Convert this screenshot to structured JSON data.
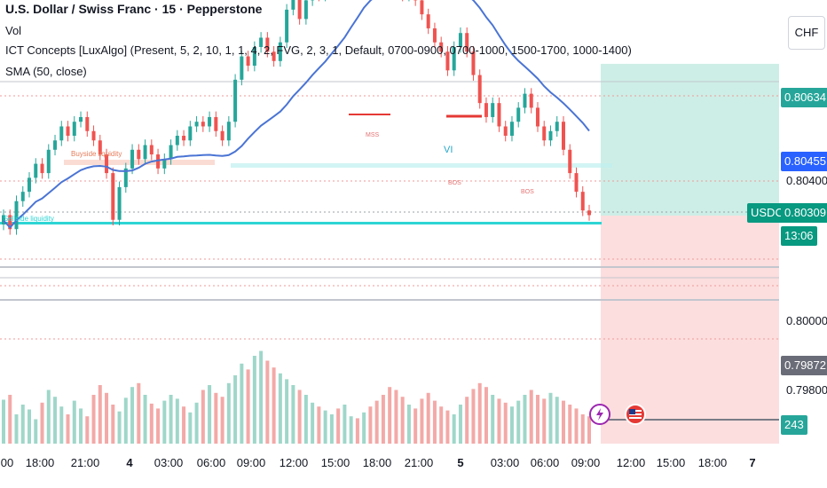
{
  "header": {
    "title": "U.S. Dollar / Swiss Franc · 15 · Pepperstone",
    "currency_button": "CHF"
  },
  "indicators": {
    "vol": "Vol",
    "ict": "ICT Concepts [LuxAlgo] (Present, 5, 2, 10, 1, 1, 4, 2, FVG, 2, 3, 1, Default, 0700-0900, 0700-1000, 1500-1700, 1000-1400)",
    "sma": "SMA (50, close)"
  },
  "price_scale": {
    "tags": {
      "target": "0.80634",
      "blue": "0.80455",
      "symbol": "USDCHF",
      "current": "0.80309",
      "countdown": "13:06",
      "stop": "0.79872",
      "volume": "243"
    },
    "labels": [
      "0.80400",
      "0.80000",
      "0.79800"
    ]
  },
  "time_axis": {
    "labels": [
      "00",
      "18:00",
      "21:00",
      "4",
      "03:00",
      "06:00",
      "09:00",
      "12:00",
      "15:00",
      "18:00",
      "21:00",
      "5",
      "03:00",
      "06:00",
      "09:00",
      "12:00",
      "15:00",
      "18:00",
      "7"
    ]
  },
  "annotations": {
    "buyside": "Buyside liquidity",
    "sellside": "Sellside liquidity",
    "mss": "MSS",
    "vi": "VI",
    "bos1": "BOS",
    "bos2": "BOS"
  },
  "colors": {
    "bull": "#26a69a",
    "bear": "#ef5350",
    "sma": "#4a74d4",
    "target_zone": "#cdeee6",
    "stop_zone": "#fcdede",
    "liquidity": "#2ed5d5"
  },
  "chart_data": {
    "type": "candlestick",
    "symbol": "USDCHF",
    "interval": "15",
    "y_range": [
      0.7975,
      0.8075
    ],
    "candles_close": [
      0.8031,
      0.8028,
      0.8034,
      0.8036,
      0.8039,
      0.8042,
      0.804,
      0.8045,
      0.8047,
      0.805,
      0.8048,
      0.8051,
      0.8052,
      0.8049,
      0.8047,
      0.8044,
      0.804,
      0.803,
      0.8037,
      0.8041,
      0.8045,
      0.8043,
      0.8046,
      0.8044,
      0.8041,
      0.8043,
      0.8046,
      0.8048,
      0.8047,
      0.805,
      0.8051,
      0.805,
      0.8052,
      0.8049,
      0.8047,
      0.8051,
      0.806,
      0.8065,
      0.8063,
      0.8067,
      0.8069,
      0.8066,
      0.8064,
      0.8068,
      0.8075,
      0.8079,
      0.8073,
      0.8077,
      0.8082,
      0.8078,
      0.808,
      0.8087,
      0.8085,
      0.8089,
      0.8094,
      0.8091,
      0.8096,
      0.8092,
      0.809,
      0.8085,
      0.8083,
      0.808,
      0.8078,
      0.8081,
      0.8077,
      0.8074,
      0.8071,
      0.8068,
      0.8066,
      0.8062,
      0.8067,
      0.807,
      0.8066,
      0.8061,
      0.8055,
      0.8052,
      0.8055,
      0.805,
      0.8048,
      0.8051,
      0.8054,
      0.8057,
      0.8054,
      0.805,
      0.8047,
      0.8049,
      0.8051,
      0.8045,
      0.804,
      0.8036,
      0.8032,
      0.8031
    ],
    "volume_relative": [
      0.45,
      0.5,
      0.3,
      0.4,
      0.35,
      0.25,
      0.42,
      0.55,
      0.48,
      0.38,
      0.3,
      0.44,
      0.36,
      0.28,
      0.5,
      0.6,
      0.52,
      0.4,
      0.33,
      0.47,
      0.58,
      0.62,
      0.5,
      0.41,
      0.36,
      0.44,
      0.5,
      0.46,
      0.38,
      0.32,
      0.42,
      0.55,
      0.6,
      0.52,
      0.48,
      0.62,
      0.7,
      0.82,
      0.76,
      0.9,
      0.95,
      0.85,
      0.78,
      0.72,
      0.66,
      0.6,
      0.55,
      0.5,
      0.42,
      0.38,
      0.34,
      0.3,
      0.36,
      0.4,
      0.28,
      0.26,
      0.32,
      0.38,
      0.44,
      0.5,
      0.58,
      0.55,
      0.48,
      0.4,
      0.36,
      0.46,
      0.52,
      0.44,
      0.38,
      0.34,
      0.3,
      0.4,
      0.48,
      0.56,
      0.62,
      0.58,
      0.5,
      0.46,
      0.42,
      0.38,
      0.44,
      0.5,
      0.55,
      0.5,
      0.46,
      0.52,
      0.48,
      0.44,
      0.4,
      0.36,
      0.3,
      0.28
    ],
    "sma_period": 50,
    "position_levels": {
      "target": 0.80634,
      "entry": 0.80309,
      "stop": 0.79872
    }
  }
}
